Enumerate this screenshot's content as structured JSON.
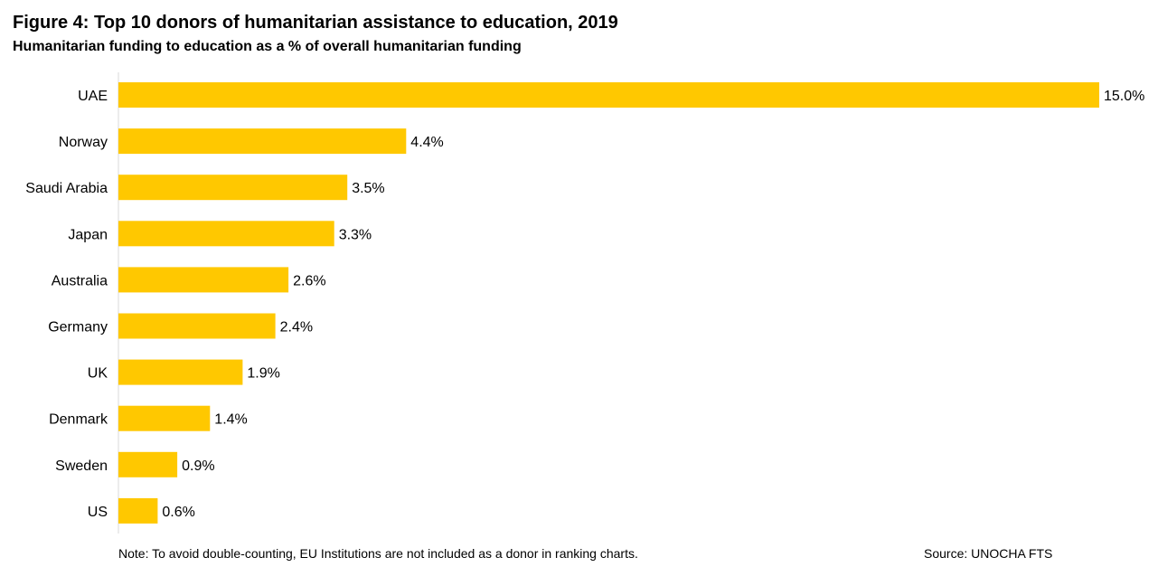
{
  "chart_data": {
    "type": "bar",
    "orientation": "horizontal",
    "title": "Figure 4: Top 10 donors of humanitarian assistance to education, 2019",
    "subtitle": "Humanitarian funding to education as a % of overall humanitarian funding",
    "categories": [
      "UAE",
      "Norway",
      "Saudi Arabia",
      "Japan",
      "Australia",
      "Germany",
      "UK",
      "Denmark",
      "Sweden",
      "US"
    ],
    "values": [
      15.0,
      4.4,
      3.5,
      3.3,
      2.6,
      2.4,
      1.9,
      1.4,
      0.9,
      0.6
    ],
    "value_labels": [
      "15.0%",
      "4.4%",
      "3.5%",
      "3.3%",
      "2.6%",
      "2.4%",
      "1.9%",
      "1.4%",
      "0.9%",
      "0.6%"
    ],
    "bar_color": "#FFC800",
    "xlim": [
      0,
      15.0
    ],
    "grid": false,
    "legend": "none"
  },
  "footer": {
    "note": "Note: To avoid double-counting, EU Institutions are  not included as a donor in ranking charts.",
    "source": "Source: UNOCHA FTS"
  }
}
